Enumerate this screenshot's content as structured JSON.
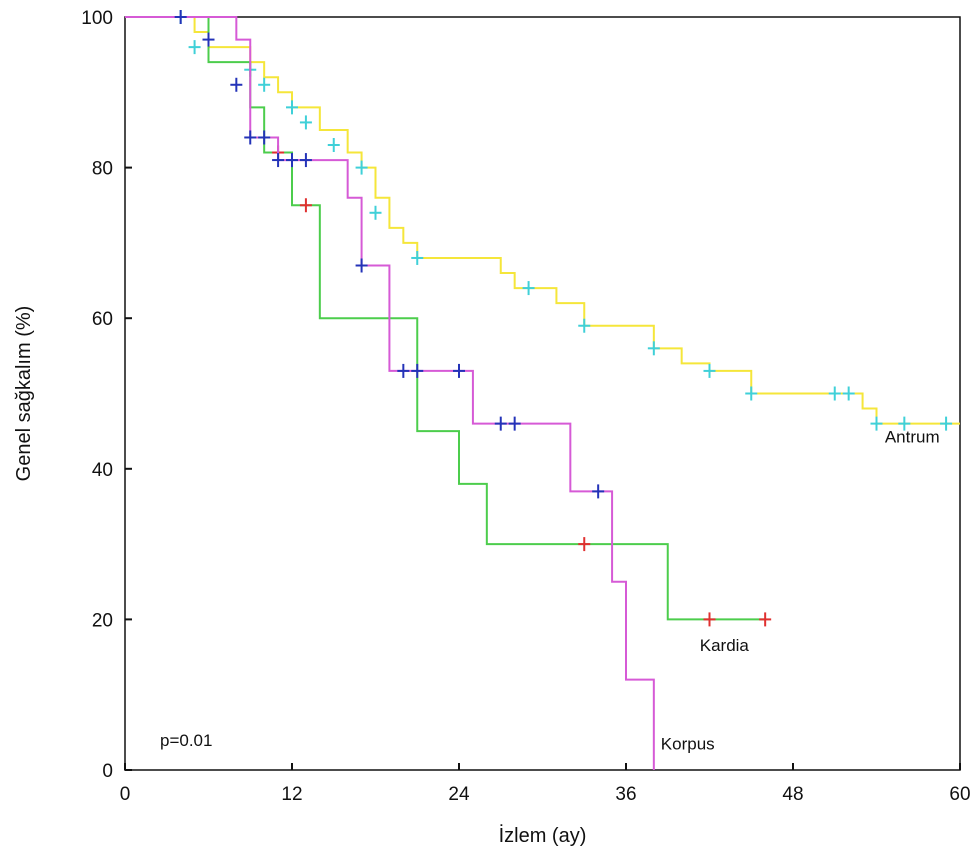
{
  "chart_data": {
    "type": "line",
    "xlabel": "İzlem (ay)",
    "ylabel": "Genel sağkalım (%)",
    "xlim": [
      0,
      60
    ],
    "ylim": [
      0,
      100
    ],
    "x_ticks": [
      "0",
      "12",
      "24",
      "36",
      "48",
      "60"
    ],
    "y_ticks": [
      "0",
      "20",
      "40",
      "60",
      "80",
      "100"
    ],
    "grid": false,
    "annotation": "p=0.01",
    "series": [
      {
        "name": "Antrum",
        "color": "#f5e63a",
        "censor_color": "#3fd0d8",
        "steps": [
          [
            0,
            100
          ],
          [
            4,
            100
          ],
          [
            5,
            98
          ],
          [
            6,
            96
          ],
          [
            9,
            94
          ],
          [
            10,
            92
          ],
          [
            11,
            90
          ],
          [
            12,
            88
          ],
          [
            14,
            85
          ],
          [
            16,
            82
          ],
          [
            17,
            80
          ],
          [
            18,
            76
          ],
          [
            19,
            72
          ],
          [
            20,
            70
          ],
          [
            21,
            68
          ],
          [
            27,
            66
          ],
          [
            28,
            64
          ],
          [
            31,
            62
          ],
          [
            33,
            59
          ],
          [
            38,
            56
          ],
          [
            40,
            54
          ],
          [
            42,
            53
          ],
          [
            45,
            50
          ],
          [
            53,
            48
          ],
          [
            54,
            46
          ],
          [
            60,
            46
          ]
        ],
        "censored": [
          [
            4,
            100
          ],
          [
            5,
            96
          ],
          [
            9,
            93
          ],
          [
            10,
            91
          ],
          [
            12,
            88
          ],
          [
            13,
            86
          ],
          [
            15,
            83
          ],
          [
            17,
            80
          ],
          [
            18,
            74
          ],
          [
            21,
            68
          ],
          [
            29,
            64
          ],
          [
            33,
            59
          ],
          [
            38,
            56
          ],
          [
            42,
            53
          ],
          [
            45,
            50
          ],
          [
            51,
            50
          ],
          [
            52,
            50
          ],
          [
            54,
            46
          ],
          [
            56,
            46
          ],
          [
            59,
            46
          ]
        ]
      },
      {
        "name": "Kardia",
        "color": "#4ccd4c",
        "censor_color": "#e03030",
        "steps": [
          [
            0,
            100
          ],
          [
            6,
            100
          ],
          [
            6,
            94
          ],
          [
            9,
            94
          ],
          [
            9,
            88
          ],
          [
            10,
            88
          ],
          [
            10,
            82
          ],
          [
            12,
            82
          ],
          [
            12,
            75
          ],
          [
            14,
            75
          ],
          [
            14,
            60
          ],
          [
            21,
            60
          ],
          [
            21,
            45
          ],
          [
            24,
            45
          ],
          [
            24,
            38
          ],
          [
            26,
            38
          ],
          [
            26,
            30
          ],
          [
            39,
            30
          ],
          [
            39,
            20
          ],
          [
            46,
            20
          ]
        ],
        "censored": [
          [
            11,
            82
          ],
          [
            13,
            75
          ],
          [
            33,
            30
          ],
          [
            42,
            20
          ],
          [
            46,
            20
          ]
        ]
      },
      {
        "name": "Korpus",
        "color": "#d65ad6",
        "censor_color": "#2433b8",
        "steps": [
          [
            0,
            100
          ],
          [
            8,
            97
          ],
          [
            9,
            84
          ],
          [
            11,
            81
          ],
          [
            16,
            81
          ],
          [
            16,
            76
          ],
          [
            17,
            76
          ],
          [
            17,
            67
          ],
          [
            19,
            67
          ],
          [
            19,
            53
          ],
          [
            25,
            53
          ],
          [
            25,
            46
          ],
          [
            32,
            46
          ],
          [
            32,
            37
          ],
          [
            35,
            37
          ],
          [
            35,
            25
          ],
          [
            36,
            25
          ],
          [
            36,
            12
          ],
          [
            38,
            12
          ],
          [
            38,
            0
          ]
        ],
        "censored": [
          [
            4,
            100
          ],
          [
            6,
            97
          ],
          [
            8,
            91
          ],
          [
            9,
            84
          ],
          [
            10,
            84
          ],
          [
            11,
            81
          ],
          [
            12,
            81
          ],
          [
            13,
            81
          ],
          [
            17,
            67
          ],
          [
            20,
            53
          ],
          [
            21,
            53
          ],
          [
            24,
            53
          ],
          [
            27,
            46
          ],
          [
            28,
            46
          ],
          [
            34,
            37
          ]
        ]
      }
    ]
  }
}
